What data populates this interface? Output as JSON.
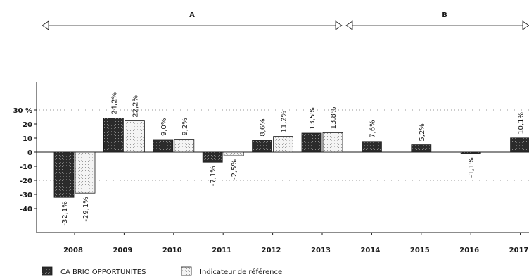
{
  "chart_data": {
    "type": "bar",
    "categories": [
      "2008",
      "2009",
      "2010",
      "2011",
      "2012",
      "2013",
      "2014",
      "2015",
      "2016",
      "2017"
    ],
    "series": [
      {
        "name": "CA BRIO OPPORTUNITES",
        "values": [
          -32.1,
          24.2,
          9.0,
          -7.1,
          8.6,
          13.5,
          7.6,
          5.2,
          -1.1,
          10.1
        ],
        "labels": [
          "-32,1%",
          "24,2%",
          "9,0%",
          "-7,1%",
          "8,6%",
          "13,5%",
          "7,6%",
          "5,2%",
          "-1,1%",
          "10,1%"
        ],
        "color": "#1f1f1f"
      },
      {
        "name": "Indicateur de référence",
        "values": [
          -29.1,
          22.2,
          9.2,
          -2.5,
          11.2,
          13.8,
          null,
          null,
          null,
          null
        ],
        "labels": [
          "-29,1%",
          "22,2%",
          "9,2%",
          "-2,5%",
          "11,2%",
          "13,8%",
          null,
          null,
          null,
          null
        ],
        "color": "#e6e6e6"
      }
    ],
    "ylim": [
      -57,
      49
    ],
    "yticks": [
      {
        "value": 30,
        "label": "30 %"
      },
      {
        "value": 20,
        "label": "20"
      },
      {
        "value": 10,
        "label": "10"
      },
      {
        "value": 0,
        "label": "0"
      },
      {
        "value": -10,
        "label": "-10"
      },
      {
        "value": -20,
        "label": "-20"
      },
      {
        "value": -30,
        "label": "-30"
      },
      {
        "value": -40,
        "label": "-40"
      }
    ],
    "dotted_reference_lines": [
      30,
      -20
    ],
    "periods": [
      {
        "label": "A",
        "from": "2008",
        "to": "2013"
      },
      {
        "label": "B",
        "from": "2014",
        "to": "2017"
      }
    ],
    "legend_position": "bottom-left"
  }
}
